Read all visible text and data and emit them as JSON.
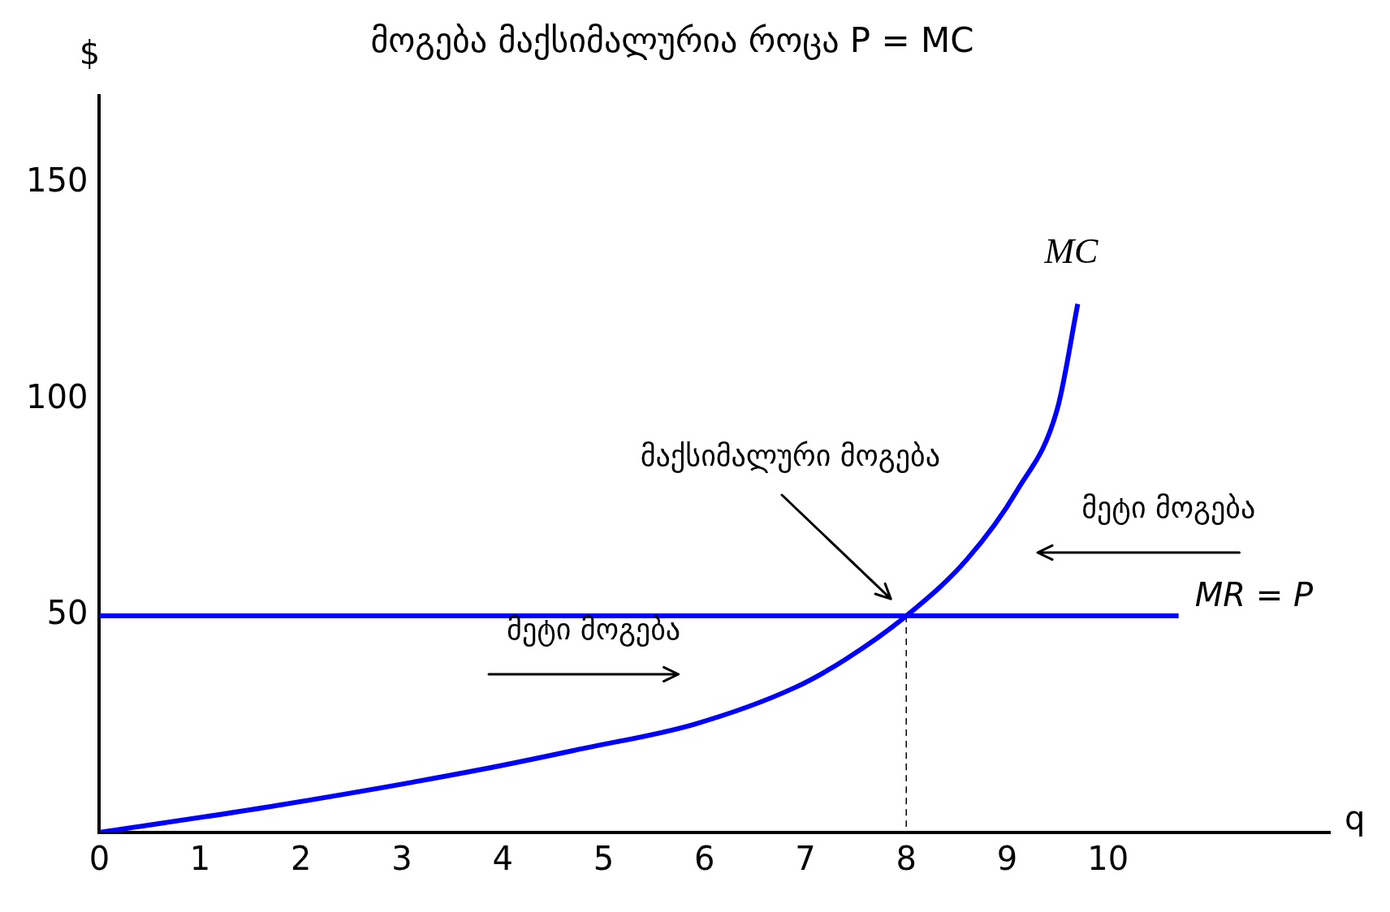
{
  "chart_data": {
    "type": "line",
    "title": "მოგება მაქსიმალურია როცა P = MC",
    "xlabel": "q",
    "ylabel": "$",
    "xlim": [
      0,
      12.2
    ],
    "xticks": [
      0,
      1,
      2,
      3,
      4,
      5,
      6,
      7,
      8,
      9,
      10
    ],
    "ylim": [
      0,
      170
    ],
    "yticks": [
      50,
      100,
      150
    ],
    "grid": false,
    "legend": false,
    "marker": "none",
    "series": [
      {
        "name": "MC",
        "color": "#0000ff",
        "x": [
          0,
          1.7,
          3.8,
          4.8,
          5.9,
          6.9,
          7.4,
          8,
          8.6,
          9.1,
          9.5,
          9.7
        ],
        "values": [
          0,
          6,
          14.6,
          19.4,
          25,
          33.5,
          40,
          50,
          63,
          79,
          98,
          122
        ]
      },
      {
        "name": "MR = P",
        "color": "#0000ff",
        "x": [
          0,
          10.7
        ],
        "values": [
          50,
          50
        ]
      },
      {
        "color": "#000000",
        "x": [
          8,
          8
        ],
        "values": [
          50,
          0
        ],
        "line_style": "dashed"
      }
    ],
    "annotations": [
      "მაქსიმალური მოგება",
      "მეტი მოგება",
      "მეტი მოგება"
    ]
  }
}
